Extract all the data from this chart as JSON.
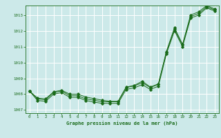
{
  "title": "Graphe pression niveau de la mer (hPa)",
  "bg_color": "#cce9e9",
  "grid_color": "#ffffff",
  "line_color": "#1a6b1a",
  "xlim": [
    -0.5,
    23.5
  ],
  "ylim": [
    1006.8,
    1013.6
  ],
  "yticks": [
    1007,
    1008,
    1009,
    1010,
    1011,
    1012,
    1013
  ],
  "xticks": [
    0,
    1,
    2,
    3,
    4,
    5,
    6,
    7,
    8,
    9,
    10,
    11,
    12,
    13,
    14,
    15,
    16,
    17,
    18,
    19,
    20,
    21,
    22,
    23
  ],
  "line1": [
    1008.2,
    1007.6,
    1007.55,
    1008.0,
    1008.1,
    1007.8,
    1007.8,
    1007.6,
    1007.5,
    1007.42,
    1007.42,
    1007.42,
    1008.3,
    1008.4,
    1008.6,
    1008.3,
    1008.5,
    1010.55,
    1012.0,
    1011.0,
    1012.8,
    1013.0,
    1013.45,
    1013.25
  ],
  "line2": [
    1008.2,
    1007.7,
    1007.65,
    1008.1,
    1008.2,
    1007.9,
    1007.9,
    1007.7,
    1007.62,
    1007.52,
    1007.52,
    1007.52,
    1008.42,
    1008.52,
    1008.72,
    1008.42,
    1008.62,
    1010.65,
    1012.1,
    1011.1,
    1012.9,
    1013.1,
    1013.52,
    1013.32
  ],
  "line3": [
    1008.2,
    1007.75,
    1007.7,
    1008.15,
    1008.25,
    1008.0,
    1008.0,
    1007.82,
    1007.72,
    1007.62,
    1007.55,
    1007.55,
    1008.45,
    1008.55,
    1008.82,
    1008.45,
    1008.65,
    1010.7,
    1012.2,
    1011.15,
    1013.0,
    1013.2,
    1013.6,
    1013.38
  ]
}
